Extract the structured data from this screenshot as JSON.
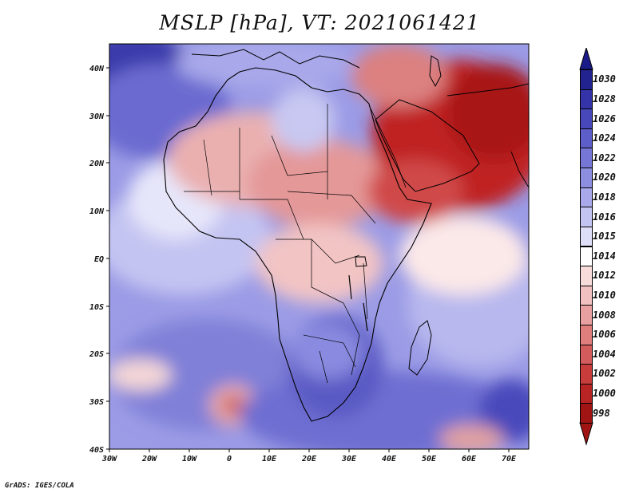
{
  "title": "MSLP [hPa], VT: 2021061421",
  "credit": "GrADS: IGES/COLA",
  "map": {
    "variable": "Mean sea level pressure",
    "units": "hPa",
    "valid_time": "2021061421",
    "lon_range": [
      -30,
      75
    ],
    "lat_range": [
      -40,
      45
    ],
    "x_ticks": [
      "30W",
      "20W",
      "10W",
      "0",
      "10E",
      "20E",
      "30E",
      "40E",
      "50E",
      "60E",
      "70E"
    ],
    "y_ticks": [
      "40N",
      "30N",
      "20N",
      "10N",
      "EQ",
      "10S",
      "20S",
      "30S",
      "40S"
    ],
    "colors": {
      "high_dark": "#2a2a9c",
      "low_dark": "#a31818",
      "neutral": "#ffffff"
    }
  },
  "colorbar": {
    "labels": [
      "1030",
      "1028",
      "1026",
      "1024",
      "1022",
      "1020",
      "1018",
      "1016",
      "1015",
      "1014",
      "1012",
      "1010",
      "1008",
      "1006",
      "1004",
      "1002",
      "1000",
      "998"
    ],
    "colors": [
      "#23238f",
      "#3434a8",
      "#4848bb",
      "#5e5ecb",
      "#7676d6",
      "#8e8ee0",
      "#a8a8ea",
      "#c4c4f2",
      "#dedef8",
      "#ffffff",
      "#f8dcdc",
      "#f1c0c0",
      "#e9a0a0",
      "#e07e7e",
      "#d55c5c",
      "#c83c3c",
      "#b82424",
      "#a01414"
    ]
  }
}
